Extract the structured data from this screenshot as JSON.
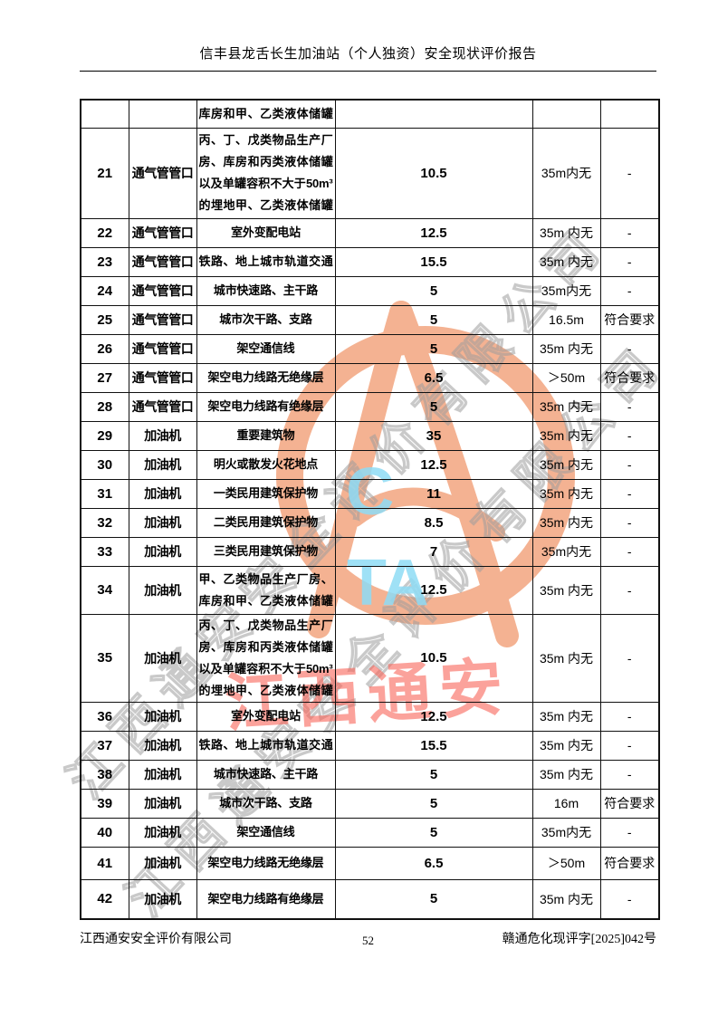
{
  "page": {
    "header_title": "信丰县龙舌长生加油站（个人独资）安全现状评价报告",
    "footer_left": "江西通安安全评价有限公司",
    "footer_page_number": "52",
    "footer_right": "赣通危化现评字[2025]042号"
  },
  "watermark": {
    "red_text": "江西通安",
    "diagonal_text": "江西通安安全评价有限公司",
    "blue_text_line1": "C",
    "blue_text_line2": "TA",
    "colors": {
      "logo_orange": "#F2A077",
      "red_text": "#F96458",
      "gray_outline": "#9E9E9E",
      "blue_letters": "#8FDCF5"
    }
  },
  "table": {
    "rows": [
      {
        "key": "A",
        "no": "",
        "item": "",
        "desc": "库房和甲、乙类液体储罐",
        "value": "",
        "distance": "",
        "result": ""
      },
      {
        "key": "21",
        "no": "21",
        "item": "通气管管口",
        "desc": "丙、丁、戊类物品生产厂房、库房和丙类液体储罐以及单罐容积不大于50m³的埋地甲、乙类液体储罐",
        "value": "10.5",
        "distance": "35m内无",
        "result": "-"
      },
      {
        "key": "22",
        "no": "22",
        "item": "通气管管口",
        "desc": "室外变配电站",
        "value": "12.5",
        "distance": "35m 内无",
        "result": "-"
      },
      {
        "key": "23",
        "no": "23",
        "item": "通气管管口",
        "desc": "铁路、地上城市轨道交通",
        "value": "15.5",
        "distance": "35m 内无",
        "result": "-"
      },
      {
        "key": "24",
        "no": "24",
        "item": "通气管管口",
        "desc": "城市快速路、主干路",
        "value": "5",
        "distance": "35m内无",
        "result": "-"
      },
      {
        "key": "25",
        "no": "25",
        "item": "通气管管口",
        "desc": "城市次干路、支路",
        "value": "5",
        "distance": "16.5m",
        "result": "符合要求"
      },
      {
        "key": "26",
        "no": "26",
        "item": "通气管管口",
        "desc": "架空通信线",
        "value": "5",
        "distance": "35m 内无",
        "result": "-"
      },
      {
        "key": "27",
        "no": "27",
        "item": "通气管管口",
        "desc": "架空电力线路无绝缘层",
        "value": "6.5",
        "distance": "＞50m",
        "result": "符合要求"
      },
      {
        "key": "28",
        "no": "28",
        "item": "通气管管口",
        "desc": "架空电力线路有绝缘层",
        "value": "5",
        "distance": "35m 内无",
        "result": "-"
      },
      {
        "key": "29",
        "no": "29",
        "item": "加油机",
        "desc": "重要建筑物",
        "value": "35",
        "distance": "35m 内无",
        "result": "-"
      },
      {
        "key": "30",
        "no": "30",
        "item": "加油机",
        "desc": "明火或散发火花地点",
        "value": "12.5",
        "distance": "35m 内无",
        "result": "-"
      },
      {
        "key": "31",
        "no": "31",
        "item": "加油机",
        "desc": "一类民用建筑保护物",
        "value": "11",
        "distance": "35m 内无",
        "result": "-"
      },
      {
        "key": "32",
        "no": "32",
        "item": "加油机",
        "desc": "二类民用建筑保护物",
        "value": "8.5",
        "distance": "35m 内无",
        "result": "-"
      },
      {
        "key": "33",
        "no": "33",
        "item": "加油机",
        "desc": "三类民用建筑保护物",
        "value": "7",
        "distance": "35m内无",
        "result": "-"
      },
      {
        "key": "34",
        "no": "34",
        "item": "加油机",
        "desc": "甲、乙类物品生产厂房、库房和甲、乙类液体储罐",
        "value": "12.5",
        "distance": "35m 内无",
        "result": "-"
      },
      {
        "key": "35",
        "no": "35",
        "item": "加油机",
        "desc": "丙、丁、戊类物品生产厂房、库房和丙类液体储罐以及单罐容积不大于50m³的埋地甲、乙类液体储罐",
        "value": "10.5",
        "distance": "35m 内无",
        "result": "-"
      },
      {
        "key": "36",
        "no": "36",
        "item": "加油机",
        "desc": "室外变配电站",
        "value": "12.5",
        "distance": "35m 内无",
        "result": "-"
      },
      {
        "key": "37",
        "no": "37",
        "item": "加油机",
        "desc": "铁路、地上城市轨道交通",
        "value": "15.5",
        "distance": "35m 内无",
        "result": "-"
      },
      {
        "key": "38",
        "no": "38",
        "item": "加油机",
        "desc": "城市快速路、主干路",
        "value": "5",
        "distance": "35m 内无",
        "result": "-"
      },
      {
        "key": "39",
        "no": "39",
        "item": "加油机",
        "desc": "城市次干路、支路",
        "value": "5",
        "distance": "16m",
        "result": "符合要求"
      },
      {
        "key": "40",
        "no": "40",
        "item": "加油机",
        "desc": "架空通信线",
        "value": "5",
        "distance": "35m内无",
        "result": "-"
      },
      {
        "key": "41",
        "no": "41",
        "item": "加油机",
        "desc": "架空电力线路无绝缘层",
        "value": "6.5",
        "distance": "＞50m",
        "result": "符合要求"
      },
      {
        "key": "42",
        "no": "42",
        "item": "加油机",
        "desc": "架空电力线路有绝缘层",
        "value": "5",
        "distance": "35m 内无",
        "result": "-"
      }
    ]
  }
}
